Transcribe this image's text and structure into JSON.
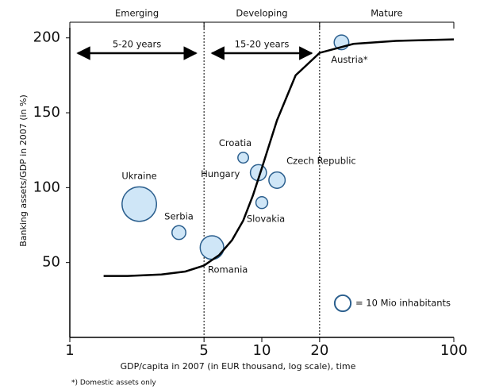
{
  "chart_data": {
    "type": "scatter",
    "x_label": "GDP/capita in 2007 (in EUR thousand, log scale), time",
    "y_label": "Banking assets/GDP in 2007 (in %)",
    "log_x": true,
    "xlim": [
      1,
      100
    ],
    "xticks": [
      1,
      5,
      10,
      20,
      100
    ],
    "ylim": [
      0,
      220
    ],
    "yticks": [
      50,
      100,
      150,
      200
    ],
    "series": [
      {
        "type": "bubble",
        "color": "#cfe6f7",
        "edge": "#2b5f8e",
        "labels": [
          "Ukraine",
          "Serbia",
          "Romania",
          "Croatia",
          "Hungary",
          "Slovakia",
          "Czech Republic",
          "Austria*"
        ],
        "x": [
          2.3,
          3.7,
          5.5,
          8,
          9.6,
          10,
          12,
          26
        ],
        "values": [
          89,
          70,
          60,
          120,
          110,
          90,
          105,
          197
        ],
        "sizes": [
          46,
          7.4,
          21.5,
          4.4,
          10,
          5.4,
          10.3,
          8.3
        ]
      },
      {
        "type": "line",
        "color": "#000000",
        "x": [
          1.5,
          2,
          3,
          4,
          5,
          6,
          7,
          8,
          9,
          10,
          12,
          15,
          20,
          30,
          50,
          100
        ],
        "values": [
          41,
          41,
          42,
          44,
          48,
          55,
          65,
          78,
          95,
          113,
          145,
          175,
          190,
          196,
          198,
          199
        ]
      }
    ],
    "size_legend": {
      "value": 10,
      "label": "= 10 Mio inhabitants"
    },
    "phases": [
      {
        "label": "Emerging",
        "duration": "5-20 years"
      },
      {
        "label": "Developing",
        "duration": "15-20 years"
      },
      {
        "label": "Mature"
      }
    ],
    "phase_boundaries": [
      5,
      20
    ],
    "footnote": "*) Domestic assets only"
  }
}
